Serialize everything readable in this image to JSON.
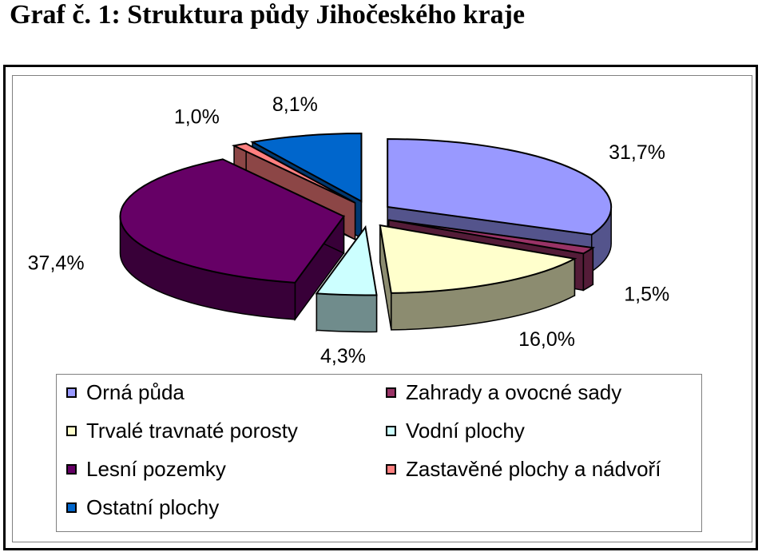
{
  "title": "Graf č. 1: Struktura půdy Jihočeského kraje",
  "chart_data": {
    "type": "pie",
    "three_d": true,
    "exploded": true,
    "title": "",
    "legend_placement": "bottom",
    "slices": [
      {
        "name": "Orná půda",
        "value": 31.7,
        "label": "31,7%",
        "color": "#9999FF"
      },
      {
        "name": "Zahrady a ovocné sady",
        "value": 1.5,
        "label": "1,5%",
        "color": "#993366"
      },
      {
        "name": "Trvalé travnaté porosty",
        "value": 16.0,
        "label": "16,0%",
        "color": "#FFFFCC"
      },
      {
        "name": "Vodní plochy",
        "value": 4.3,
        "label": "4,3%",
        "color": "#CCFFFF"
      },
      {
        "name": "Lesní pozemky",
        "value": 37.4,
        "label": "37,4%",
        "color": "#660066"
      },
      {
        "name": "Zastavěné plochy a nádvoří",
        "value": 1.0,
        "label": "1,0%",
        "color": "#FF8080"
      },
      {
        "name": "Ostatní plochy",
        "value": 8.1,
        "label": "8,1%",
        "color": "#0066CC"
      }
    ],
    "legend_order": [
      "Orná půda",
      "Zahrady a ovocné sady",
      "Trvalé travnaté porosty",
      "Vodní plochy",
      "Lesní pozemky",
      "Zastavěné plochy a nádvoří",
      "Ostatní plochy"
    ]
  }
}
